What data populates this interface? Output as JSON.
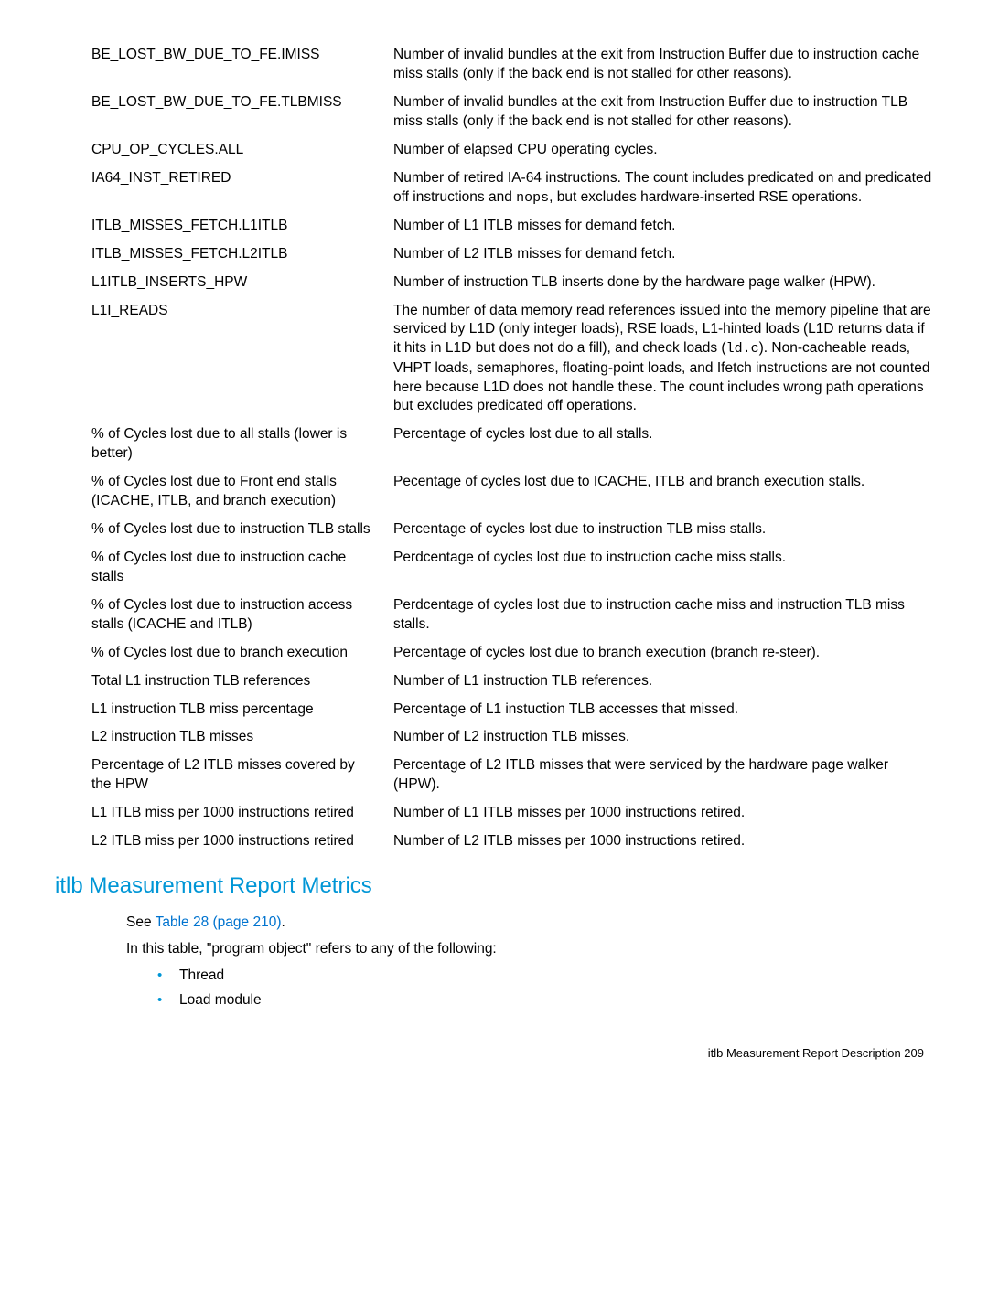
{
  "rows": [
    {
      "l": "BE_LOST_BW_DUE_TO_FE.IMISS",
      "r": "Number of invalid bundles at the exit from Instruction Buffer due to instruction cache miss stalls (only if the back end is not stalled for other reasons)."
    },
    {
      "l": "BE_LOST_BW_DUE_TO_FE.TLBMISS",
      "r": "Number of invalid bundles at the exit from Instruction Buffer due to instruction TLB miss stalls (only if the back end is not stalled for other reasons)."
    },
    {
      "l": "CPU_OP_CYCLES.ALL",
      "r": "Number of elapsed CPU operating cycles."
    },
    {
      "l": "IA64_INST_RETIRED",
      "r": "Number of retired IA-64 instructions. The count includes predicated on and predicated off instructions and <span class=\"mono\">nops</span>, but excludes hardware-inserted RSE operations."
    },
    {
      "l": "ITLB_MISSES_FETCH.L1ITLB",
      "r": "Number of L1 ITLB misses for demand fetch."
    },
    {
      "l": "ITLB_MISSES_FETCH.L2ITLB",
      "r": "Number of L2 ITLB misses for demand fetch."
    },
    {
      "l": "L1ITLB_INSERTS_HPW",
      "r": "Number of instruction TLB inserts done by the hardware page walker (HPW)."
    },
    {
      "l": "L1I_READS",
      "r": "The number of data memory read references issued into the memory pipeline that are serviced by L1D (only integer loads), RSE loads, L1-hinted loads (L1D returns data if it hits in L1D but does not do a fill), and check loads (<span class=\"mono\">ld.c</span>). Non-cacheable reads, VHPT loads, semaphores, floating-point loads, and Ifetch instructions are not counted here because L1D does not handle these. The count includes wrong path operations but excludes predicated off operations."
    },
    {
      "l": "% of Cycles lost due to all stalls (lower is better)",
      "r": "Percentage of cycles lost due to all stalls."
    },
    {
      "l": "% of Cycles lost due to Front end stalls (ICACHE, ITLB, and branch execution)",
      "r": "Pecentage of cycles lost due to ICACHE, ITLB and branch execution stalls."
    },
    {
      "l": "% of Cycles lost due to instruction TLB stalls",
      "r": "Percentage of cycles lost due to instruction TLB miss stalls."
    },
    {
      "l": "% of Cycles lost due to instruction cache stalls",
      "r": "Perdcentage of cycles lost due to instruction cache miss stalls."
    },
    {
      "l": "% of Cycles lost due to instruction access stalls (ICACHE and ITLB)",
      "r": "Perdcentage of cycles lost due to instruction cache miss and instruction TLB miss stalls."
    },
    {
      "l": "% of Cycles lost due to branch execution",
      "r": "Percentage of cycles lost due to branch execution (branch re-steer)."
    },
    {
      "l": "Total L1 instruction TLB references",
      "r": "Number of L1 instruction TLB references."
    },
    {
      "l": "L1 instruction TLB miss percentage",
      "r": "Percentage of L1 instuction TLB accesses that missed."
    },
    {
      "l": "L2 instruction TLB misses",
      "r": "Number of L2 instruction TLB misses."
    },
    {
      "l": "Percentage of L2 ITLB misses covered by the HPW",
      "r": "Percentage of L2 ITLB misses that were serviced by the hardware page walker (HPW)."
    },
    {
      "l": "L1 ITLB miss per 1000 instructions retired",
      "r": "Number of L1 ITLB misses per 1000 instructions retired."
    },
    {
      "l": "L2 ITLB miss per 1000 instructions retired",
      "r": "Number of L2 ITLB misses per 1000 instructions retired."
    }
  ],
  "heading": "itlb Measurement Report Metrics",
  "see_prefix": "See ",
  "see_link": "Table 28 (page 210)",
  "see_suffix": ".",
  "intro": "In this table, \"program object\" refers to any of the following:",
  "bullets": [
    "Thread",
    "Load module"
  ],
  "footer": "itlb Measurement Report Description   209"
}
